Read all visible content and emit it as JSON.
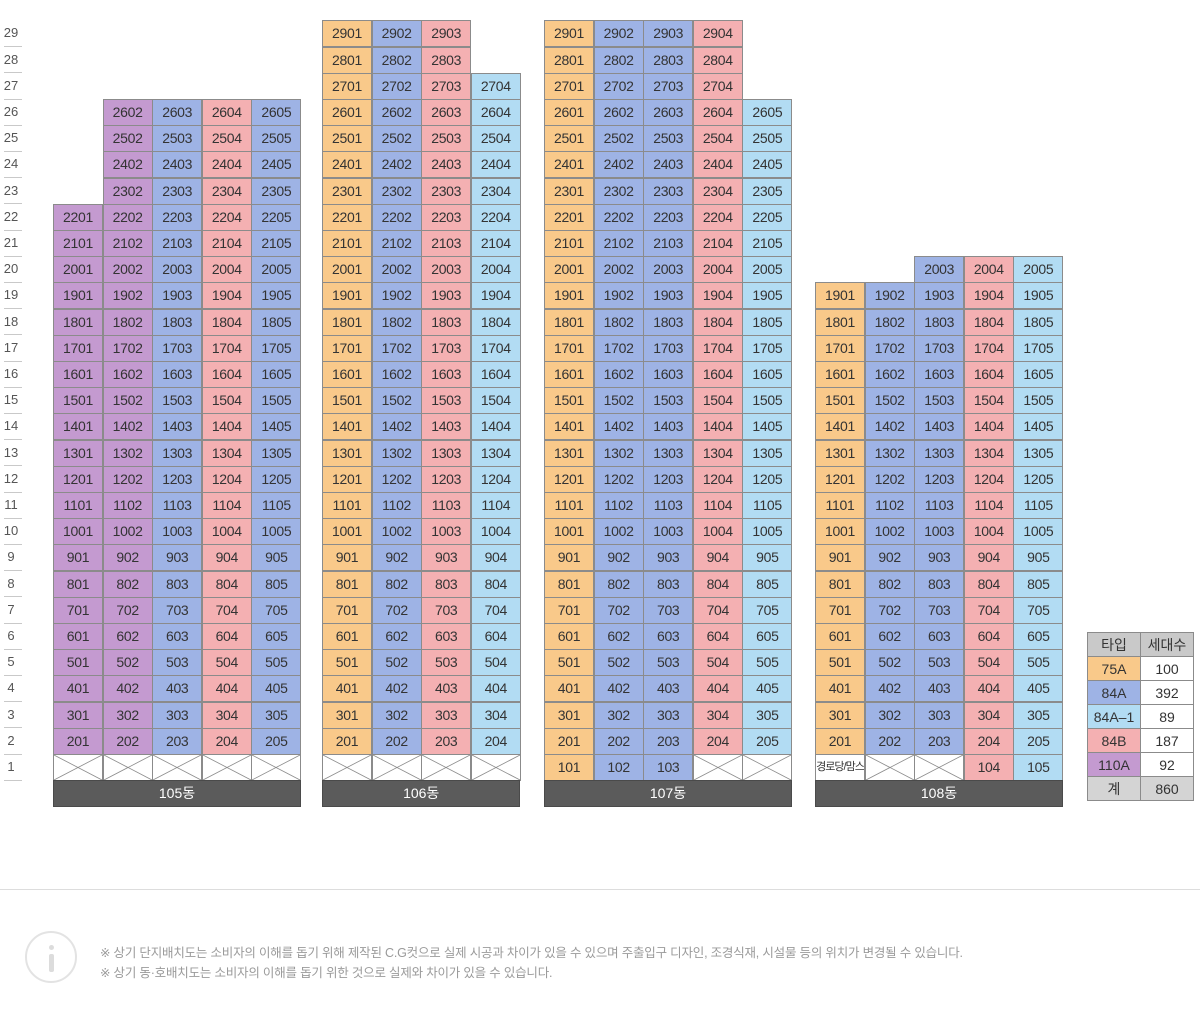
{
  "floors": [
    "1",
    "2",
    "3",
    "4",
    "5",
    "6",
    "7",
    "8",
    "9",
    "10",
    "11",
    "12",
    "13",
    "14",
    "15",
    "16",
    "17",
    "18",
    "19",
    "20",
    "21",
    "22",
    "23",
    "24",
    "25",
    "26",
    "27",
    "28",
    "29"
  ],
  "buildings": [
    {
      "name": "105동",
      "columns": [
        {
          "line": "01",
          "type": "110A",
          "floors": [
            2,
            22
          ]
        },
        {
          "line": "02",
          "type": "110A",
          "floors": [
            2,
            26
          ]
        },
        {
          "line": "03",
          "type": "84A",
          "floors": [
            2,
            26
          ]
        },
        {
          "line": "04",
          "type": "84B",
          "floors": [
            2,
            26
          ]
        },
        {
          "line": "05",
          "type": "84A",
          "floors": [
            2,
            26
          ]
        }
      ],
      "ground": [
        {
          "kind": "empty"
        },
        {
          "kind": "empty"
        },
        {
          "kind": "empty"
        },
        {
          "kind": "empty"
        },
        {
          "kind": "empty"
        }
      ]
    },
    {
      "name": "106동",
      "columns": [
        {
          "line": "01",
          "type": "75A",
          "floors": [
            2,
            29
          ]
        },
        {
          "line": "02",
          "type": "84A",
          "floors": [
            2,
            29
          ]
        },
        {
          "line": "03",
          "type": "84B",
          "floors": [
            2,
            29
          ]
        },
        {
          "line": "04",
          "type": "84A1",
          "floors": [
            2,
            27
          ]
        }
      ],
      "ground": [
        {
          "kind": "empty"
        },
        {
          "kind": "empty"
        },
        {
          "kind": "empty"
        },
        {
          "kind": "empty"
        }
      ]
    },
    {
      "name": "107동",
      "columns": [
        {
          "line": "01",
          "type": "75A",
          "floors": [
            2,
            29
          ]
        },
        {
          "line": "02",
          "type": "84A",
          "floors": [
            2,
            29
          ]
        },
        {
          "line": "03",
          "type": "84A",
          "floors": [
            2,
            29
          ]
        },
        {
          "line": "04",
          "type": "84B",
          "floors": [
            2,
            29
          ]
        },
        {
          "line": "05",
          "type": "84A1",
          "floors": [
            2,
            26
          ]
        }
      ],
      "ground": [
        {
          "kind": "unit",
          "label": "101",
          "type": "75A"
        },
        {
          "kind": "unit",
          "label": "102",
          "type": "84A"
        },
        {
          "kind": "unit",
          "label": "103",
          "type": "84A"
        },
        {
          "kind": "empty"
        },
        {
          "kind": "empty"
        }
      ]
    },
    {
      "name": "108동",
      "columns": [
        {
          "line": "01",
          "type": "75A",
          "floors": [
            2,
            19
          ]
        },
        {
          "line": "02",
          "type": "84A",
          "floors": [
            2,
            19
          ]
        },
        {
          "line": "03",
          "type": "84A",
          "floors": [
            2,
            20
          ]
        },
        {
          "line": "04",
          "type": "84B",
          "floors": [
            2,
            20
          ]
        },
        {
          "line": "05",
          "type": "84A1",
          "floors": [
            2,
            20
          ]
        }
      ],
      "ground": [
        {
          "kind": "facility",
          "label": "경로당/맘스"
        },
        {
          "kind": "empty"
        },
        {
          "kind": "empty"
        },
        {
          "kind": "unit",
          "label": "104",
          "type": "84B"
        },
        {
          "kind": "unit",
          "label": "105",
          "type": "84A1"
        }
      ]
    }
  ],
  "legend": {
    "header_type": "타입",
    "header_count": "세대수",
    "rows": [
      {
        "type": "75A",
        "count": "100",
        "color": "#f9c98a"
      },
      {
        "type": "84A",
        "count": "392",
        "color": "#9eb3e5"
      },
      {
        "type": "84A–1",
        "count": "89",
        "color": "#b2dcf3"
      },
      {
        "type": "84B",
        "count": "187",
        "color": "#f4b0b2"
      },
      {
        "type": "110A",
        "count": "92",
        "color": "#c49ad0"
      }
    ],
    "total_label": "계",
    "total_count": "860"
  },
  "notes": [
    "※ 상기 단지배치도는 소비자의 이해를 돕기 위해 제작된 C.G컷으로 실제 시공과 차이가 있을 수 있으며 주출입구 디자인, 조경식재, 시설물 등의 위치가 변경될 수 있습니다.",
    "※ 상기 동·호배치도는 소비자의 이해를 돕기 위한 것으로 실제와 차이가 있을 수 있습니다."
  ],
  "icons": {
    "info": "info-icon"
  }
}
